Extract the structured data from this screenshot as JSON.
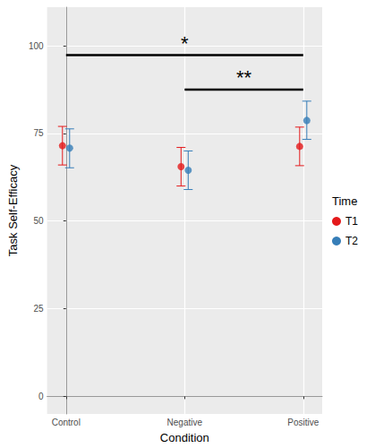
{
  "chart_data": {
    "type": "scatter",
    "x_label": "Condition",
    "y_label": "Task Self-Efficacy",
    "legend_title": "Time",
    "categories": [
      "Control",
      "Negative",
      "Positive"
    ],
    "series": [
      {
        "name": "T1",
        "color": "#E41A1C",
        "values": [
          71.5,
          65.5,
          71.3
        ],
        "error_low": [
          66,
          60,
          65.8
        ],
        "error_high": [
          77,
          71,
          76.8
        ]
      },
      {
        "name": "T2",
        "color": "#377EB8",
        "values": [
          70.8,
          64.5,
          78.7
        ],
        "error_low": [
          65.2,
          59,
          73.3
        ],
        "error_high": [
          76.3,
          70,
          84.2
        ]
      }
    ],
    "annotations": [
      {
        "text": "*",
        "from": "Control",
        "to": "Positive",
        "y": 97.3
      },
      {
        "text": "**",
        "from": "Negative",
        "to": "Positive",
        "y": 87.5
      }
    ],
    "ylim": [
      -5,
      111
    ],
    "yticks": [
      0,
      25,
      50,
      75,
      100
    ],
    "grid": true,
    "legend": "right"
  }
}
